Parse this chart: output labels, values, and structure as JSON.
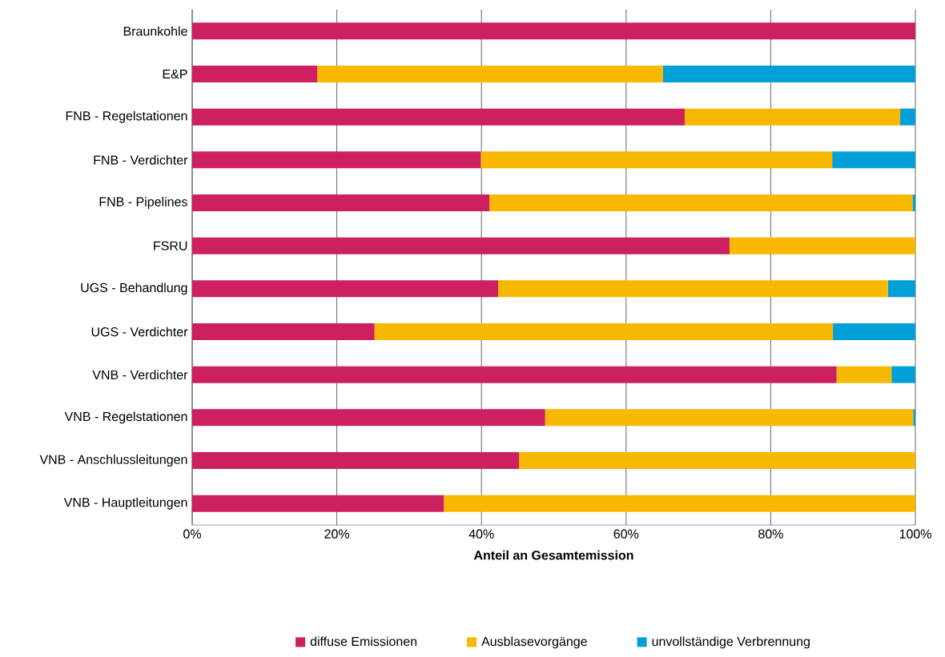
{
  "chart_data": {
    "type": "bar",
    "orientation": "horizontal",
    "stacked": true,
    "xlabel": "Anteil an Gesamtemission",
    "categories": [
      "Braunkohle",
      "E&P",
      "FNB - Regelstationen",
      "FNB - Verdichter",
      "FNB - Pipelines",
      "FSRU",
      "UGS - Behandlung",
      "UGS - Verdichter",
      "VNB - Verdichter",
      "VNB - Regelstationen",
      "VNB - Anschlussleitungen",
      "VNB - Hauptleitungen"
    ],
    "series": [
      {
        "name": "diffuse Emissionen",
        "color": "#cc2060",
        "values": [
          100,
          17.3,
          68.1,
          39.9,
          41.1,
          74.3,
          42.3,
          25.2,
          89.1,
          48.8,
          45.2,
          34.8
        ]
      },
      {
        "name": "Ausblasevorgänge",
        "color": "#f9b800",
        "values": [
          0,
          47.8,
          29.8,
          48.6,
          58.5,
          25.7,
          53.9,
          63.4,
          7.6,
          50.9,
          54.8,
          65.2
        ]
      },
      {
        "name": "unvollständige Verbrennung",
        "color": "#009fd8",
        "values": [
          0,
          34.9,
          2.1,
          11.5,
          0.4,
          0,
          3.8,
          11.4,
          3.3,
          0.3,
          0,
          0
        ]
      }
    ],
    "xlim": [
      0,
      100
    ],
    "xticks": [
      {
        "value": 0,
        "label": "0%"
      },
      {
        "value": 20,
        "label": "20%"
      },
      {
        "value": 40,
        "label": "40%"
      },
      {
        "value": 60,
        "label": "60%"
      },
      {
        "value": 80,
        "label": "80%"
      },
      {
        "value": 100,
        "label": "100%"
      }
    ],
    "grid": "x",
    "legend": "bottom"
  }
}
